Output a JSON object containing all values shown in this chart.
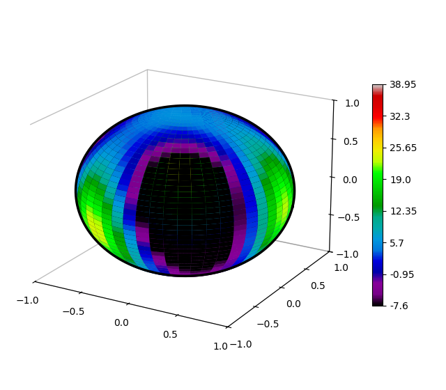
{
  "colorbar_min": -7.6,
  "colorbar_max": 38.95,
  "colorbar_ticks": [
    38.95,
    32.3,
    25.65,
    19.0,
    12.35,
    5.7,
    -0.95,
    -7.6
  ],
  "n_contours": 40,
  "sphere_color": "black",
  "background_color": "white",
  "axis_lim": [
    -1.0,
    1.0
  ],
  "elev": 20,
  "azim": -60,
  "figsize": [
    6.4,
    5.6
  ],
  "dpi": 100
}
